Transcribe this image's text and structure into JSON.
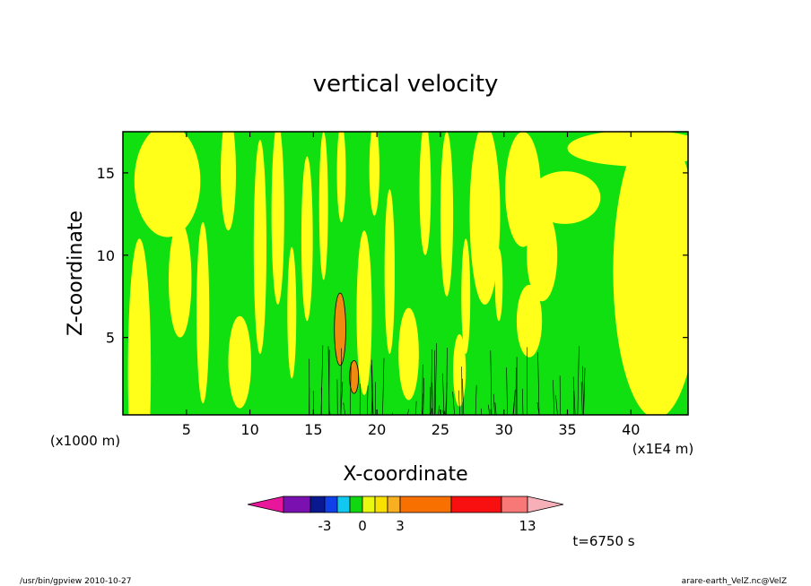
{
  "chart_data": {
    "type": "heatmap",
    "title": "vertical velocity",
    "xlabel": "X-coordinate",
    "ylabel": "Z-coordinate",
    "x_unit_label": "(x1000 m)",
    "x_scale_label": "(x1E4 m)",
    "xlim": [
      0,
      44.5
    ],
    "ylim": [
      0.3,
      17.5
    ],
    "x_ticks": [
      "5",
      "10",
      "15",
      "20",
      "25",
      "30",
      "35",
      "40"
    ],
    "y_ticks": [
      "5",
      "10",
      "15"
    ],
    "x_tick_values": [
      5,
      10,
      15,
      20,
      25,
      30,
      35,
      40
    ],
    "y_tick_values": [
      5,
      10,
      15
    ],
    "colorbar": {
      "tick_labels": [
        "-3",
        "0",
        "3",
        "13"
      ],
      "tick_positions": [
        -3,
        0,
        3,
        13
      ],
      "levels": [
        -7,
        -5,
        -4,
        -3,
        -2,
        -1,
        0,
        1,
        2,
        3,
        6,
        11,
        13
      ],
      "colors": [
        "#e8169a",
        "#7a10b0",
        "#0a1890",
        "#1040e8",
        "#10c8f0",
        "#10d810",
        "#e8f810",
        "#f8e000",
        "#f8b020",
        "#f87000",
        "#f81010",
        "#f87878",
        "#f8b0b8"
      ],
      "extend": "both"
    },
    "field_colors": {
      "background": "#10e010",
      "positive": "#ffff1a",
      "strong_positive": "#f08a10",
      "contour": "#000000"
    }
  },
  "annotation": {
    "time": "t=6750 s"
  },
  "footer": {
    "left": "/usr/bin/gpview   2010-10-27",
    "right": "arare-earth_VelZ.nc@VelZ"
  }
}
